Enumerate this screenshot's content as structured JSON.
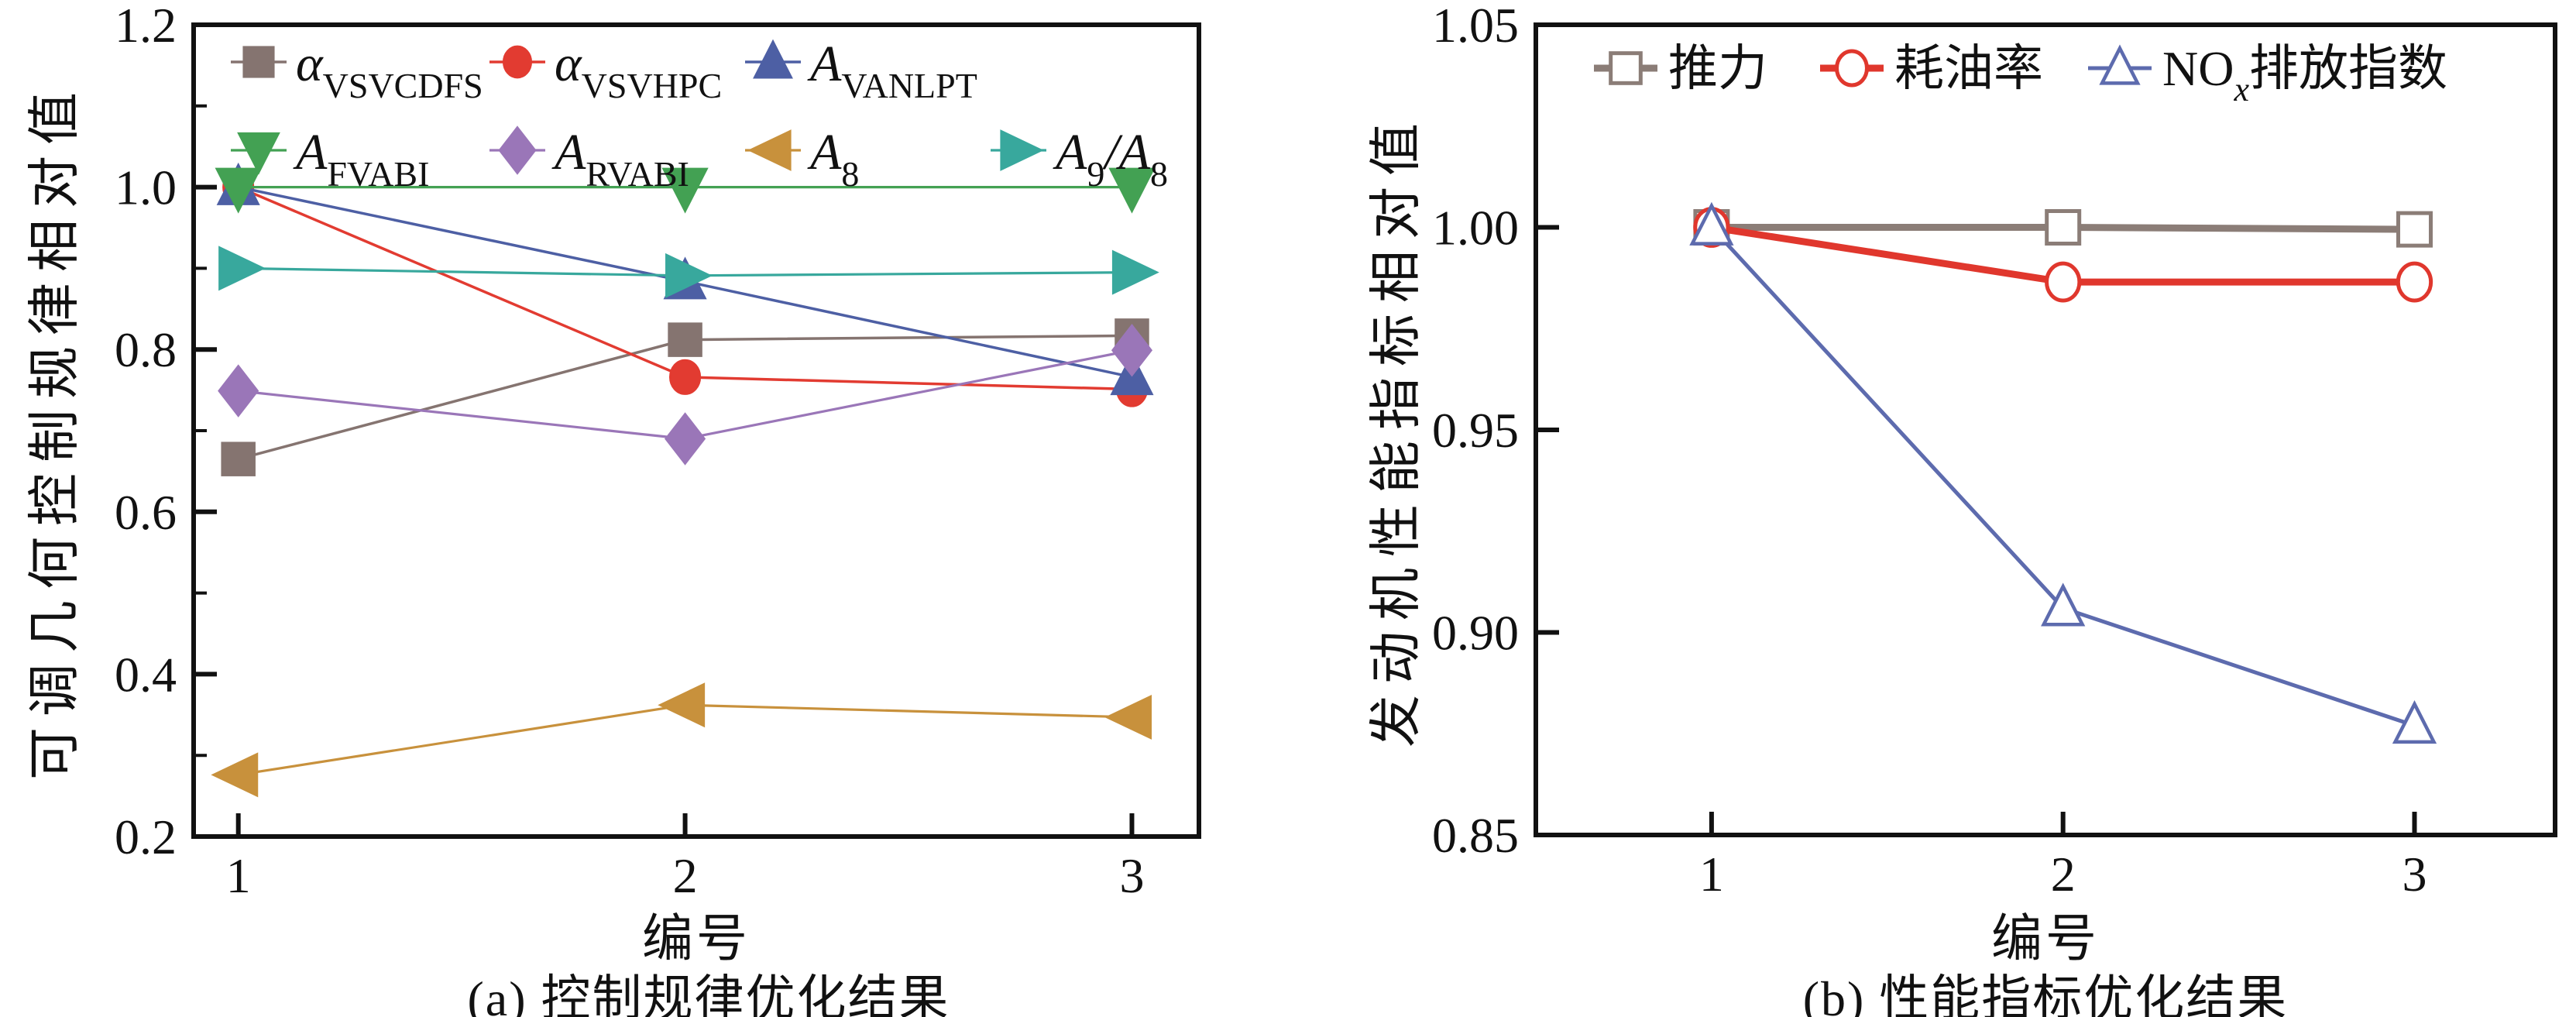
{
  "figure": {
    "background": "#ffffff",
    "axis_color": "#111111"
  },
  "chart_data": [
    {
      "id": "a",
      "type": "line",
      "caption": "(a) 控制规律优化结果",
      "xlabel": "编号",
      "ylabel": "可调几何控制规律相对值",
      "x": [
        1,
        2,
        3
      ],
      "xlim": [
        0.9,
        3.15
      ],
      "ylim": [
        0.2,
        1.2
      ],
      "xticks": [
        1,
        2,
        3
      ],
      "xtick_labels": [
        "1",
        "2",
        "3"
      ],
      "yticks": [
        0.2,
        0.4,
        0.6,
        0.8,
        1.0,
        1.2
      ],
      "ytick_labels": [
        "0.2",
        "0.4",
        "0.6",
        "0.8",
        "1.0",
        "1.2"
      ],
      "y_minor_ticks": [
        0.3,
        0.5,
        0.7,
        0.9,
        1.1
      ],
      "grid": false,
      "legend_position": "inside-top-left",
      "series": [
        {
          "name": "alpha-vsvcdfs",
          "label_segments": [
            {
              "t": "α",
              "it": true
            },
            {
              "t": "VSVCDFS",
              "sub": true
            }
          ],
          "color": "#857470",
          "marker": "square",
          "filled": true,
          "line_width": 3.5,
          "marker_size": 42,
          "values": [
            0.665,
            0.812,
            0.817
          ]
        },
        {
          "name": "alpha-vsvhpc",
          "label_segments": [
            {
              "t": "α",
              "it": true
            },
            {
              "t": "VSVHPC",
              "sub": true
            }
          ],
          "color": "#e23b31",
          "marker": "circle",
          "filled": true,
          "line_width": 3.5,
          "marker_size": 42,
          "values": [
            1.0,
            0.766,
            0.751
          ]
        },
        {
          "name": "a-vanlpt",
          "label_segments": [
            {
              "t": "A",
              "it": true
            },
            {
              "t": "VANLPT",
              "sub": true
            }
          ],
          "color": "#4d5fa4",
          "marker": "triangle-up",
          "filled": true,
          "line_width": 3.5,
          "marker_size": 50,
          "values": [
            1.0,
            0.884,
            0.766
          ]
        },
        {
          "name": "a-fvabi",
          "label_segments": [
            {
              "t": "A",
              "it": true
            },
            {
              "t": "FVABI",
              "sub": true
            }
          ],
          "color": "#43a153",
          "marker": "triangle-down",
          "filled": true,
          "line_width": 3.2,
          "marker_size": 54,
          "values": [
            1.0,
            1.0,
            1.0
          ]
        },
        {
          "name": "a-rvabi",
          "label_segments": [
            {
              "t": "A",
              "it": true
            },
            {
              "t": "RVABI",
              "sub": true
            }
          ],
          "color": "#9a76b8",
          "marker": "diamond",
          "filled": true,
          "line_width": 3.2,
          "marker_size": 52,
          "values": [
            0.749,
            0.69,
            0.799
          ]
        },
        {
          "name": "a8",
          "label_segments": [
            {
              "t": "A",
              "it": true
            },
            {
              "t": "8",
              "sub": true
            }
          ],
          "color": "#c8913c",
          "marker": "triangle-left",
          "filled": true,
          "line_width": 3.2,
          "marker_size": 54,
          "values": [
            0.276,
            0.362,
            0.347
          ]
        },
        {
          "name": "a9-a8",
          "label_segments": [
            {
              "t": "A",
              "it": true
            },
            {
              "t": "9",
              "sub": true
            },
            {
              "t": "/",
              "it": true
            },
            {
              "t": "A",
              "it": true
            },
            {
              "t": "8",
              "sub": true
            }
          ],
          "color": "#38a89d",
          "marker": "triangle-right",
          "filled": true,
          "line_width": 3.2,
          "marker_size": 54,
          "values": [
            0.9,
            0.891,
            0.895
          ]
        }
      ]
    },
    {
      "id": "b",
      "type": "line",
      "caption": "(b) 性能指标优化结果",
      "xlabel": "编号",
      "ylabel": "发动机性能指标相对值",
      "x": [
        1,
        2,
        3
      ],
      "xlim": [
        0.5,
        3.4
      ],
      "ylim": [
        0.85,
        1.05
      ],
      "xticks": [
        1,
        2,
        3
      ],
      "xtick_labels": [
        "1",
        "2",
        "3"
      ],
      "yticks": [
        0.85,
        0.9,
        0.95,
        1.0,
        1.05
      ],
      "ytick_labels": [
        "0.85",
        "0.90",
        "0.95",
        "1.00",
        "1.05"
      ],
      "y_minor_ticks": [],
      "grid": false,
      "legend_position": "inside-top",
      "series": [
        {
          "name": "thrust",
          "label_segments": [
            {
              "t": "推力"
            }
          ],
          "color": "#8b7d77",
          "marker": "square",
          "filled": false,
          "line_width": 9,
          "marker_size": 42,
          "marker_stroke": 5,
          "values": [
            1.0,
            1.0,
            0.9995
          ]
        },
        {
          "name": "sfc",
          "label_segments": [
            {
              "t": "耗油率"
            }
          ],
          "color": "#e0372d",
          "marker": "circle",
          "filled": false,
          "line_width": 9,
          "marker_size": 46,
          "marker_stroke": 5,
          "values": [
            1.0,
            0.9865,
            0.9865
          ]
        },
        {
          "name": "nox-emission-index",
          "label_segments": [
            {
              "t": "NO"
            },
            {
              "t": "x",
              "sub": true,
              "it": true
            },
            {
              "t": "排放指数"
            }
          ],
          "color": "#5d6bae",
          "marker": "triangle-up",
          "filled": false,
          "line_width": 5,
          "marker_size": 48,
          "marker_stroke": 4.5,
          "values": [
            1.0,
            0.906,
            0.877
          ]
        }
      ]
    }
  ]
}
